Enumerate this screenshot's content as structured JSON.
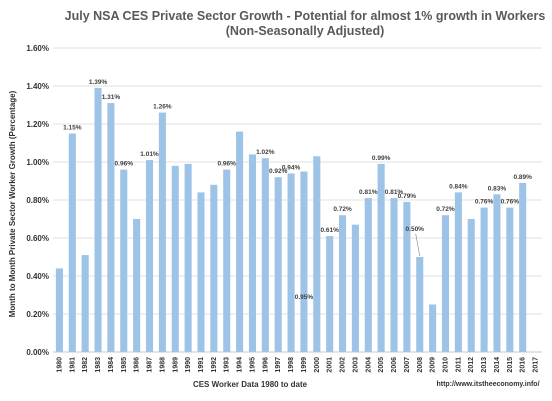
{
  "chart_data": {
    "type": "bar",
    "title": "July  NSA CES Private Sector Growth - Potential for almost 1% growth in Workers",
    "subtitle": "(Non-Seasonally Adjusted)",
    "xlabel": "CES Worker Data 1980 to date",
    "ylabel": "Month to Month Private Sector Worker Growth (Percentage)",
    "source": "http://www.itstheeconomy.info/",
    "ylim": [
      0,
      1.6
    ],
    "yticks": [
      "0.00%",
      "0.20%",
      "0.40%",
      "0.60%",
      "0.80%",
      "1.00%",
      "1.20%",
      "1.40%",
      "1.60%"
    ],
    "grid": true,
    "legend": "none",
    "bar_color": "#9dc3e6",
    "categories": [
      "1980",
      "1981",
      "1982",
      "1983",
      "1984",
      "1985",
      "1986",
      "1987",
      "1988",
      "1989",
      "1990",
      "1991",
      "1992",
      "1993",
      "1994",
      "1995",
      "1996",
      "1997",
      "1998",
      "1999",
      "2000",
      "2001",
      "2002",
      "2003",
      "2004",
      "2005",
      "2006",
      "2007",
      "2008",
      "2009",
      "2010",
      "2011",
      "2012",
      "2013",
      "2014",
      "2015",
      "2016",
      "2017"
    ],
    "values": [
      0.44,
      1.15,
      0.51,
      1.39,
      1.31,
      0.96,
      0.7,
      1.01,
      1.26,
      0.98,
      0.99,
      0.84,
      0.88,
      0.96,
      1.16,
      1.04,
      1.02,
      0.92,
      0.94,
      0.95,
      1.03,
      0.61,
      0.72,
      0.67,
      0.81,
      0.99,
      0.81,
      0.79,
      0.5,
      0.25,
      0.72,
      0.84,
      0.7,
      0.76,
      0.83,
      0.76,
      0.89,
      null
    ],
    "data_labels": [
      {
        "year": "1981",
        "text": "1.15%"
      },
      {
        "year": "1983",
        "text": "1.39%"
      },
      {
        "year": "1984",
        "text": "1.31%"
      },
      {
        "year": "1985",
        "text": "0.96%"
      },
      {
        "year": "1987",
        "text": "1.01%"
      },
      {
        "year": "1988",
        "text": "1.26%"
      },
      {
        "year": "1993",
        "text": "0.96%"
      },
      {
        "year": "1996",
        "text": "1.02%"
      },
      {
        "year": "1997",
        "text": "0.92%"
      },
      {
        "year": "1998",
        "text": "0.94%"
      },
      {
        "year": "1999",
        "text": "0.95%",
        "inside_value": 0.28
      },
      {
        "year": "2001",
        "text": "0.61%"
      },
      {
        "year": "2002",
        "text": "0.72%"
      },
      {
        "year": "2004",
        "text": "0.81%"
      },
      {
        "year": "2005",
        "text": "0.99%"
      },
      {
        "year": "2006",
        "text": "0.81%"
      },
      {
        "year": "2007",
        "text": "0.79%"
      },
      {
        "year": "2008",
        "text": "0.50%",
        "callout": true
      },
      {
        "year": "2010",
        "text": "0.72%"
      },
      {
        "year": "2011",
        "text": "0.84%"
      },
      {
        "year": "2014",
        "text": "0.83%"
      },
      {
        "year": "2013",
        "text": "0.76%"
      },
      {
        "year": "2015",
        "text": "0.76%"
      },
      {
        "year": "2016",
        "text": "0.89%"
      }
    ]
  }
}
